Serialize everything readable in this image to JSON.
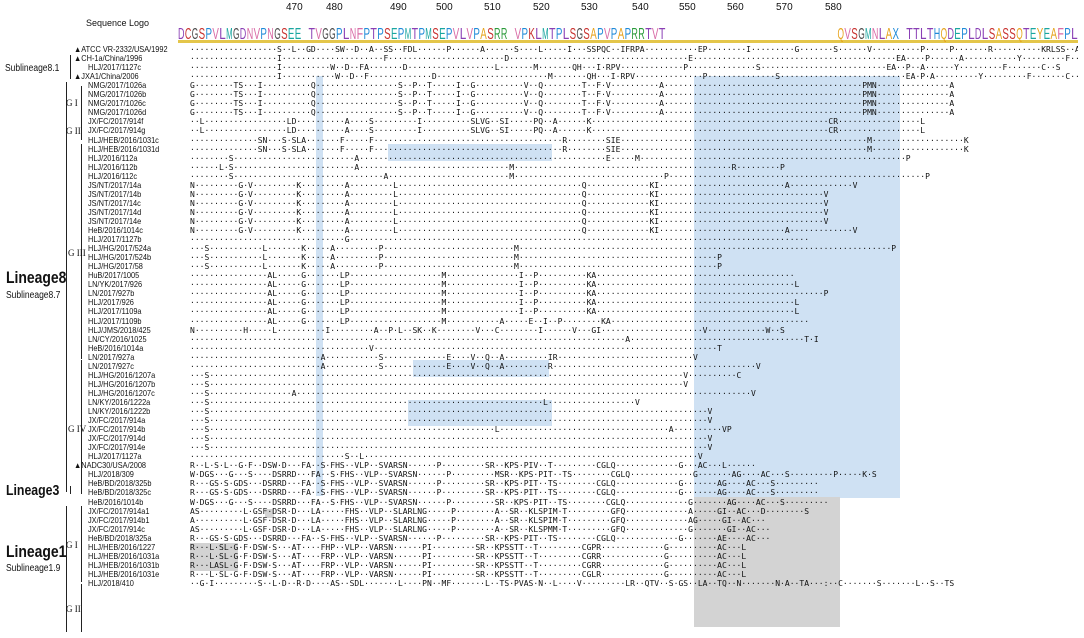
{
  "header": {
    "logo_title": "Sequence Logo",
    "ruler": [
      "470",
      "480",
      "490",
      "500",
      "510",
      "520",
      "530",
      "540",
      "550",
      "560",
      "570",
      "580"
    ]
  },
  "lineage_labels": {
    "lineage8": "Lineage8",
    "sublineage87": "Sublineage8.7",
    "sublineage81": "Sublineage8.1",
    "lineage3": "Lineage3",
    "lineage1": "Lineage1",
    "sublineage19": "Sublineage1.9",
    "group_g1": "G I",
    "group_g2": "G II",
    "group_g3": "G III",
    "group_g4": "G IV",
    "group_g1b": "G I",
    "group_g2b": "G II"
  },
  "logo_sequence": "DCGSPVLMGDNVPNGSEE·TVGGPLNFPTPSEPMTPMSEPVLVPASRR·VPKLMTPLSGSAPVPAPRRTVT·························QVSGMNLAX·TTLTHQDEPLDLSASSQTEYEAFPL",
  "colors": {
    "blue_highlight": "#cfe1f3",
    "grey_highlight": "#d3d3d3"
  },
  "sequences": [
    {
      "name": "ATCC VR-2332/USA/1992",
      "marker": "▲",
      "seq": "··················S··L··GD····SW··D··A··SS··FDL······P······A······S····L·····I···SSPQC··IFRPA···········EP········I·········G·······S······V··········P·····P·······R··········KRLSS··AA··IPPY········Y·······L······S"
    },
    {
      "name": "CH-1a/China/1996",
      "marker": "▲",
      "seq": "··················I·····················F························D·····································E··········································EA····P······A···········Y·········F··········C···S"
    },
    {
      "name": "HLJ/2017/1127c",
      "marker": "",
      "seq": "··················I··········W··D··FA·······D··················L·······M·······QH···I·RPV·············P··············S··························EA··P··A······Y·········F·······C··S"
    },
    {
      "name": "JXA1/China/2006",
      "marker": "▲",
      "seq": "··················I···········W··D··F·············D·······················M·······QH···I·RPV··············P··············S··························EA·P·A·········Y·········F·······C···S"
    },
    {
      "name": "NMG/2017/1026a",
      "marker": "",
      "seq": "G········TS···I··········Q·················S··P··T·····I··G··········V··Q········T··F·V··········A·········································PMN···············A"
    },
    {
      "name": "NMG/2017/1026b",
      "marker": "",
      "seq": "G········TS···I··········Q·················S··P··T·····I··G··········V··Q········T··F·V··········A·········································PMN···············A"
    },
    {
      "name": "NMG/2017/1026c",
      "marker": "",
      "seq": "G········TS···I··········Q·················S··P··T·····I··G··········V··Q········T··F·V··········A·········································PMN···············A"
    },
    {
      "name": "NMG/2017/1026d",
      "marker": "",
      "seq": "G········TS···I··········Q·················S··P··T·····I··G··········V··Q········T··F·V··········A·········································PMN···············A"
    },
    {
      "name": "JX/FC/2017/914f",
      "marker": "",
      "seq": "··L·················LD··········A····S·········I··········SLVG··SI·····PQ··A······K·················································CR·················L"
    },
    {
      "name": "JX/FC/2017/914g",
      "marker": "",
      "seq": "··L·················LD··········A····S·········I··········SLVG··SI·····PQ··A······K·················································CR·················L"
    },
    {
      "name": "HLJ/HEB/2016/1031c",
      "marker": "",
      "seq": "··············SN···S·SLA·······F·····F·······································R········SIE···················································M···················K"
    },
    {
      "name": "HLJ/HEB/2016/1031d",
      "marker": "",
      "seq": "··············SN···S·SLA·······F·····F·······································R········SIE···················································M···················K"
    },
    {
      "name": "HLJ/2016/112a",
      "marker": "",
      "seq": "········S·························A···················································E·····M·······················································P"
    },
    {
      "name": "HLJ/2016/112b",
      "marker": "",
      "seq": "······L·S·························A·······························M·············································R·········P"
    },
    {
      "name": "HLJ/2016/112c",
      "marker": "",
      "seq": "········S·······························A·························M·······························P·····················································P"
    },
    {
      "name": "JS/NT/2017/14a",
      "marker": "",
      "seq": "N·········G·V·········K·········A·········L······································Q·············KI··························A·············V"
    },
    {
      "name": "JS/NT/2017/14b",
      "marker": "",
      "seq": "N·········G·V·········K·········A·········L······································Q·············KI··································V"
    },
    {
      "name": "JS/NT/2017/14c",
      "marker": "",
      "seq": "N·········G·V·········K·········A·········L······································Q·············KI··································V"
    },
    {
      "name": "JS/NT/2017/14d",
      "marker": "",
      "seq": "N·········G·V·········K·········A·········L······································Q·············KI··································V"
    },
    {
      "name": "JS/NT/2017/14e",
      "marker": "",
      "seq": "N·········G·V·········K·········A·········L······································Q·············KI··································V"
    },
    {
      "name": "HeB/2016/1014c",
      "marker": "",
      "seq": "N·········G·V·········K·········A·········L······································Q·············KI··························A·············V"
    },
    {
      "name": "HLJ/2017/1127b",
      "marker": "",
      "seq": "································G·······························································································"
    },
    {
      "name": "HLJ/HG/2017/524a",
      "marker": "",
      "seq": "···S···········L·······K·····A·········P···························M·············································································P"
    },
    {
      "name": "HLJ/HG/2017/524b",
      "marker": "",
      "seq": "···S···········L·······K·····A·········P···························M·········································P"
    },
    {
      "name": "HLJ/HG/2017/58",
      "marker": "",
      "seq": "···S···········L·······K·····A·········P···························M·········································P"
    },
    {
      "name": "HuB/2017/1005",
      "marker": "",
      "seq": "················AL·····G·······LP···················M···············I··P··········KA·········································"
    },
    {
      "name": "LN/YK/2017/926",
      "marker": "",
      "seq": "················AL·····G·······LP···················M···············I··P··········KA·········································L"
    },
    {
      "name": "LN/2017/927b",
      "marker": "",
      "seq": "················AL·····G·······LP···················M···············I··P··········KA···············································P"
    },
    {
      "name": "HLJ/2017/926",
      "marker": "",
      "seq": "················AL·····G·······LP···················M···············I··P··········KA·········································L"
    },
    {
      "name": "HLJ/2017/1109a",
      "marker": "",
      "seq": "················AL·····G·······LP···················M···············I··P··········KA·········································L"
    },
    {
      "name": "HLJ/2017/1109b",
      "marker": "",
      "seq": "················AL·····G·······LP···················M···········A·····E··I··P········KA·········································"
    },
    {
      "name": "HLJ/JMS/2018/425",
      "marker": "",
      "seq": "N··········H·····L··········I·········A··P·L··SK··K········V···C········I······V···GI·····················V············W··S"
    },
    {
      "name": "LN/CY/2016/1025",
      "marker": "",
      "seq": "··························································································A····································T·I"
    },
    {
      "name": "HeB/2016/1014a",
      "marker": "",
      "seq": "·····································V·······································································T"
    },
    {
      "name": "LN/2017/927a",
      "marker": "",
      "seq": "···························A···········S·············E····V··Q··A·········IR····························V"
    },
    {
      "name": "LN/2017/927c",
      "marker": "",
      "seq": "···························A···········S·············E····V··Q··A·········R··········································V"
    },
    {
      "name": "HLJ/HG/2016/1207a",
      "marker": "",
      "seq": "···S··································································································V··········C"
    },
    {
      "name": "HLJ/HG/2016/1207b",
      "marker": "",
      "seq": "···S··································································································V"
    },
    {
      "name": "HLJ/HG/2016/1207c",
      "marker": "",
      "seq": "···S·················A······························································································V"
    },
    {
      "name": "LN/KY/2016/1222a",
      "marker": "",
      "seq": "···S·····································································L··················V"
    },
    {
      "name": "LN/KY/2016/1222b",
      "marker": "",
      "seq": "···S·······································································································V"
    },
    {
      "name": "JX/FC/2017/914a",
      "marker": "",
      "seq": "···S·······································································································V"
    },
    {
      "name": "JX/FC/2017/914b",
      "marker": "",
      "seq": "···S···························································L···································A··········VP"
    },
    {
      "name": "JX/FC/2017/914d",
      "marker": "",
      "seq": "···S·······································································································V"
    },
    {
      "name": "JX/FC/2017/914e",
      "marker": "",
      "seq": "···S·······································································································V"
    },
    {
      "name": "HLJ/2017/1127a",
      "marker": "",
      "seq": "································S··L·····································································V"
    },
    {
      "name": "NADC30/USA/2008",
      "marker": "▲",
      "seq": "R··L·S·L··G·F··DSW·D···FA··S·FHS··VLP··SVARSN······P·········SR··KPS·PIV··T·········CGLQ·············G···AC···L······"
    },
    {
      "name": "HLJ/2018/309",
      "marker": "",
      "seq": "W·DGS···G···S····DSRRD···FA··S·FHS··VLP··SVARSN······P·········MSR··KPS·PIT··TS········CGLQ·············G·······AG····AC···S·········P·····K·S"
    },
    {
      "name": "HeB/BD/2018/325b",
      "marker": "",
      "seq": "R···GS·S·GDS···DSRRD···FA··S·FHS··VLP··SVARSN······P·········SR··KPS·PIT··TS········CGLQ·············G·······AG····AC···S·········"
    },
    {
      "name": "HeB/BD/2018/325c",
      "marker": "",
      "seq": "R···GS·S·GDS···DSRRD···FA··S·FHS··VLP··SVARSN······P·········SR··KPS·PIT··TS········CGLQ·············G·······AG····AC···S·········"
    },
    {
      "name": "HeB/2016/1014b",
      "marker": "",
      "seq": "W·DGS···G···S····DSRRD···FA··S·FHS··VLP··SVARSN······P·········SR··KPS·PIT··TS········CGLQ·············G·······AG····AC···S·········"
    },
    {
      "name": "JX/FC/2017/914a1",
      "marker": "",
      "seq": "AS·········L·GSF·DSR·D···LA·····FHS··VLP··SLARLNG·····P········A··SR··KLSPIM·T·········GFQ·············A·····GI··AC···D········S"
    },
    {
      "name": "JX/FC/2017/914b1",
      "marker": "",
      "seq": "A··········L·GSF·DSR·D···LA·····FHS··VLP··SLARLNG·····P········A··SR··KLSPIM·T·········GFQ·············AG·····GI··AC···"
    },
    {
      "name": "JX/FC/2017/914c",
      "marker": "",
      "seq": "AS·········L·GSF·DSR·D···LA·····FHS··VLP··SLARLNG·····P········A··SR··KLSPMM·T·········GFQ·············G·······GI··AC···"
    },
    {
      "name": "HeB/BD/2018/325a",
      "marker": "",
      "seq": "R···GS·S·GDS···DSRRD···FA··S·FHS··VLP··SVARSN······P·········SR··KPS·PIT··TS········CGLQ·············G·······AE····AC···"
    },
    {
      "name": "HLJ/HEB/2016/1227",
      "marker": "",
      "seq": "R···L·SL·G·F·DSW·S···AT····FHP··VLP··VARSN······PI·········SR··KPSSTT··T·········CGPR·············G··········AC···L"
    },
    {
      "name": "HLJ/HEB/2016/1031a",
      "marker": "",
      "seq": "R···L·SL·G·F·DSW·S···AT····FRP··VLP··VARSN······PI·········SR··KPSSTT··T·········CGRR·············G··········AC···L"
    },
    {
      "name": "HLJ/HEB/2016/1031b",
      "marker": "",
      "seq": "R···LASL·G·F·DSW·S···AT····FRP··VLP··VARSN······PI·········SR··KPSSTT··T·········CGRR·············G··········AC···L"
    },
    {
      "name": "HLJ/HEB/2016/1031e",
      "marker": "",
      "seq": "R···L·SL·G·F·DSW·S···AT····FRP··VLP··VARSN······PI·········SR··KPSSTT··T·········CGLR·············G··········AC···L"
    },
    {
      "name": "HLJ/2018/410",
      "marker": "",
      "seq": "··G·I·········S··L·D··R·D····AS··SDL·······L····PN··MF·······L··TS·PVAS·N··L····V·········LR··QTV··S·GS··LA··TQ··N·······N·A··TA···:··C·······S·······L··S··TS"
    }
  ]
}
